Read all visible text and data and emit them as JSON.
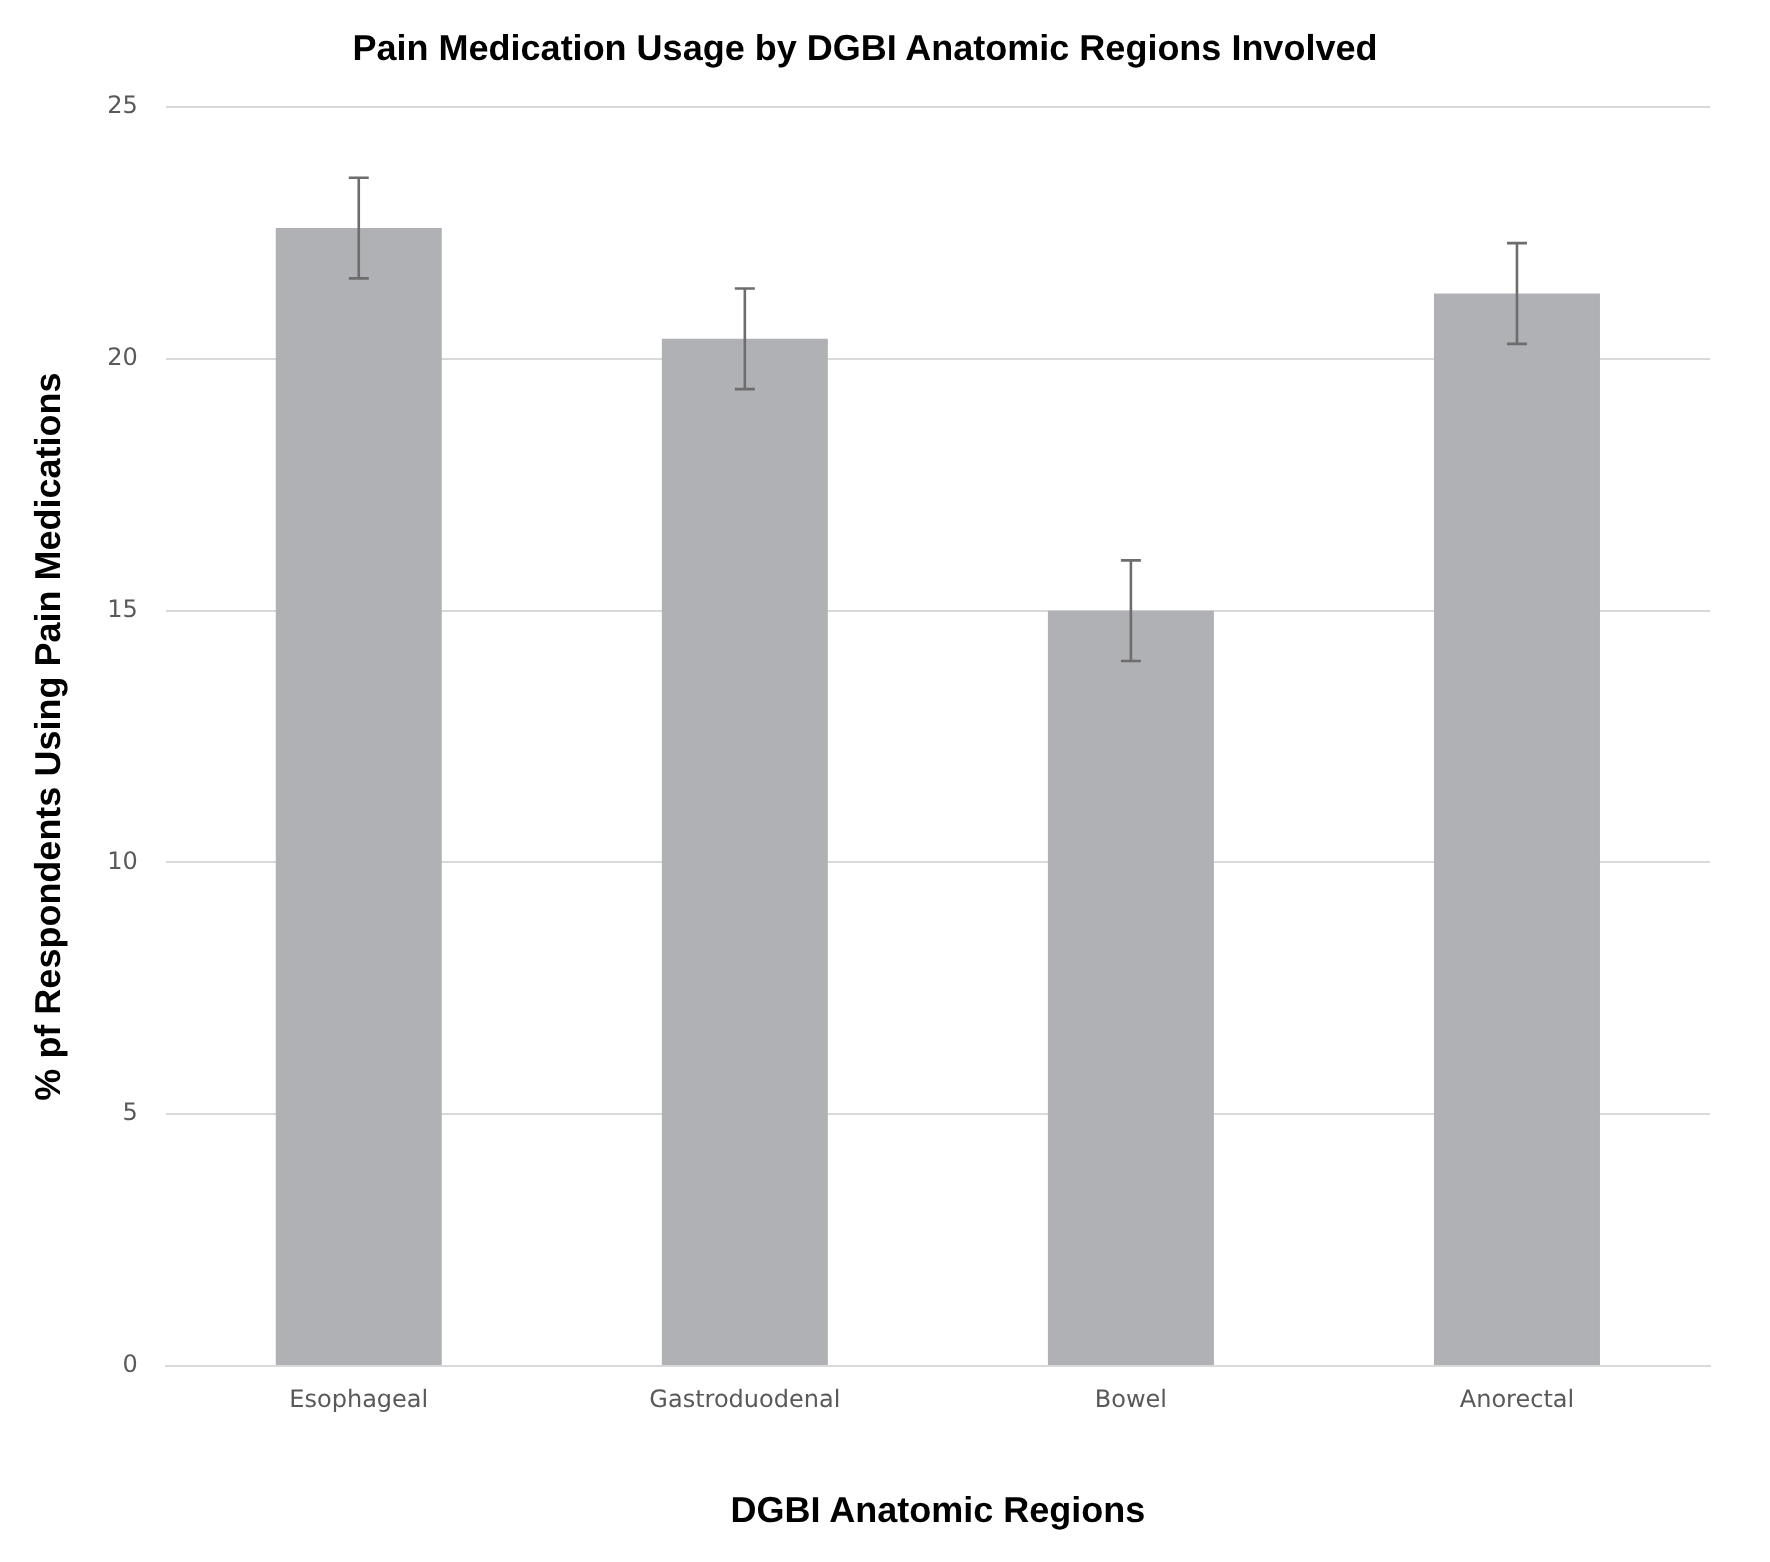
{
  "chart_data": {
    "type": "bar",
    "title": "Pain Medication Usage by DGBI Anatomic Regions Involved",
    "xlabel": "DGBI Anatomic Regions",
    "ylabel": "% pf Respondents Using Pain Medications",
    "categories": [
      "Esophageal",
      "Gastroduodenal",
      "Bowel",
      "Anorectal"
    ],
    "values": [
      22.6,
      20.4,
      15.0,
      21.3
    ],
    "errors": [
      1,
      1,
      1,
      1
    ],
    "color": "#b0b1b5",
    "ylim": [
      0,
      25
    ],
    "yticks": [
      0,
      5,
      10,
      15,
      20,
      25
    ],
    "grid": "y",
    "legend": false
  }
}
